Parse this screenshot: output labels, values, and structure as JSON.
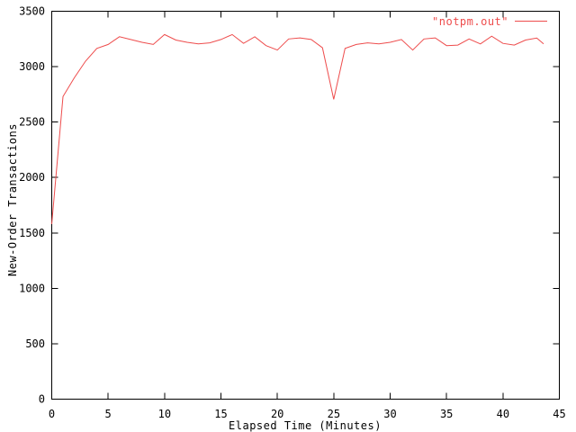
{
  "colors": {
    "background": "#ffffff",
    "axis": "#000000",
    "series_red": "#ee4c4c"
  },
  "chart_data": {
    "type": "line",
    "title": "",
    "xlabel": "Elapsed Time (Minutes)",
    "ylabel": "New-Order Transactions",
    "xlim": [
      0,
      45
    ],
    "ylim": [
      0,
      3500
    ],
    "xticks": [
      0,
      5,
      10,
      15,
      20,
      25,
      30,
      35,
      40,
      45
    ],
    "yticks": [
      0,
      500,
      1000,
      1500,
      2000,
      2500,
      3000,
      3500
    ],
    "grid": false,
    "legend": {
      "position": "top-right-inside",
      "entries": [
        {
          "label": "\"notpm.out\"",
          "color": "#ee4c4c"
        }
      ]
    },
    "series": [
      {
        "name": "\"notpm.out\"",
        "color": "#ee4c4c",
        "points": [
          [
            0,
            1580
          ],
          [
            1,
            2730
          ],
          [
            2,
            2900
          ],
          [
            3,
            3050
          ],
          [
            4,
            3165
          ],
          [
            5,
            3200
          ],
          [
            6,
            3270
          ],
          [
            7,
            3245
          ],
          [
            8,
            3220
          ],
          [
            9,
            3200
          ],
          [
            10,
            3290
          ],
          [
            11,
            3240
          ],
          [
            12,
            3220
          ],
          [
            13,
            3205
          ],
          [
            14,
            3215
          ],
          [
            15,
            3245
          ],
          [
            16,
            3290
          ],
          [
            17,
            3210
          ],
          [
            18,
            3270
          ],
          [
            19,
            3190
          ],
          [
            20,
            3150
          ],
          [
            21,
            3250
          ],
          [
            22,
            3260
          ],
          [
            23,
            3245
          ],
          [
            24,
            3170
          ],
          [
            25,
            2705
          ],
          [
            26,
            3165
          ],
          [
            27,
            3200
          ],
          [
            28,
            3215
          ],
          [
            29,
            3205
          ],
          [
            30,
            3220
          ],
          [
            31,
            3245
          ],
          [
            32,
            3150
          ],
          [
            33,
            3250
          ],
          [
            34,
            3260
          ],
          [
            35,
            3190
          ],
          [
            36,
            3195
          ],
          [
            37,
            3250
          ],
          [
            38,
            3205
          ],
          [
            39,
            3275
          ],
          [
            40,
            3210
          ],
          [
            41,
            3195
          ],
          [
            42,
            3240
          ],
          [
            43,
            3258
          ],
          [
            43.6,
            3205
          ]
        ]
      }
    ]
  }
}
